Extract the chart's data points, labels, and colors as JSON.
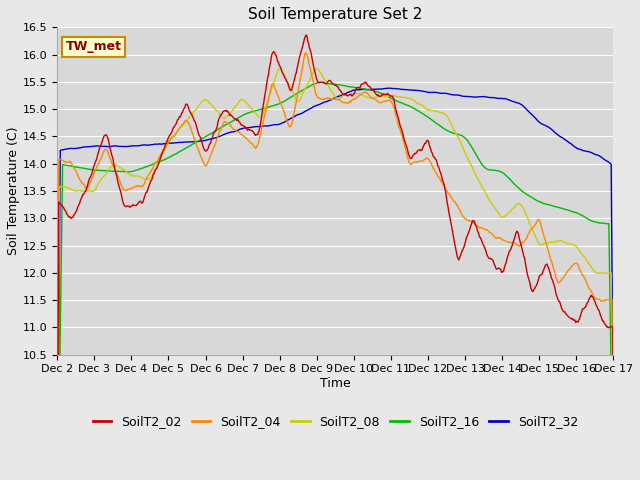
{
  "title": "Soil Temperature Set 2",
  "xlabel": "Time",
  "ylabel": "Soil Temperature (C)",
  "ylim": [
    10.5,
    16.5
  ],
  "background_color": "#e8e8e8",
  "plot_bg_color": "#d8d8d8",
  "annotation_text": "TW_met",
  "annotation_bg": "#ffffcc",
  "annotation_border": "#cc8800",
  "annotation_text_color": "#880000",
  "series_colors": {
    "SoilT2_02": "#cc0000",
    "SoilT2_04": "#ff8800",
    "SoilT2_08": "#cccc00",
    "SoilT2_16": "#00bb00",
    "SoilT2_32": "#0000cc"
  },
  "x_tick_labels": [
    "Dec 2",
    "Dec 3",
    "Dec 4",
    "Dec 5",
    "Dec 6",
    "Dec 7",
    "Dec 8",
    "Dec 9",
    "Dec 10",
    "Dec 11",
    "Dec 12",
    "Dec 13",
    "Dec 14",
    "Dec 15",
    "Dec 16",
    "Dec 17"
  ],
  "y_tick_labels": [
    "10.5",
    "11.0",
    "11.5",
    "12.0",
    "12.5",
    "13.0",
    "13.5",
    "14.0",
    "14.5",
    "15.0",
    "15.5",
    "16.0",
    "16.5"
  ],
  "y_ticks": [
    10.5,
    11.0,
    11.5,
    12.0,
    12.5,
    13.0,
    13.5,
    14.0,
    14.5,
    15.0,
    15.5,
    16.0,
    16.5
  ],
  "title_fontsize": 11,
  "axis_fontsize": 9,
  "tick_fontsize": 8,
  "legend_fontsize": 9,
  "line_width": 1.0
}
